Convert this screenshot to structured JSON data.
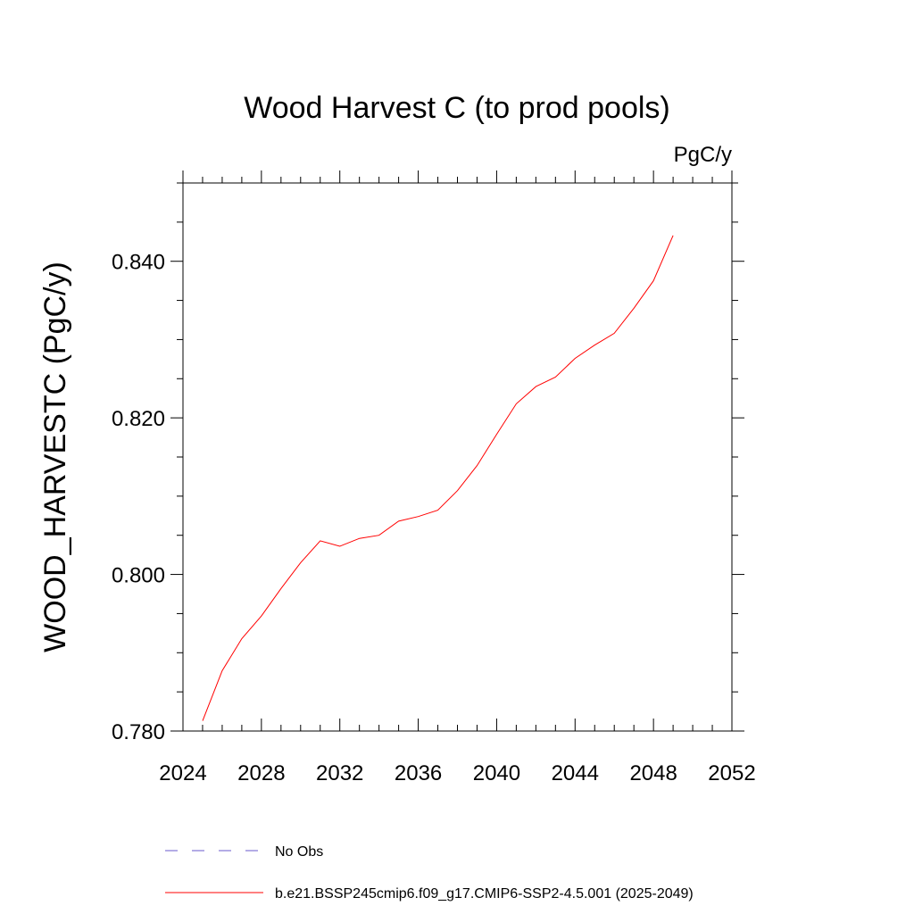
{
  "chart_data": {
    "type": "line",
    "title": "Wood Harvest C (to prod pools)",
    "units": "PgC/y",
    "ylabel": "WOOD_HARVESTC  (PgC/y)",
    "xlabel": "",
    "xlim": [
      2024,
      2052
    ],
    "ylim": [
      0.78,
      0.85
    ],
    "x_ticks": [
      2024,
      2028,
      2032,
      2036,
      2040,
      2044,
      2048,
      2052
    ],
    "x_tick_labels": [
      "2024",
      "2028",
      "2032",
      "2036",
      "2040",
      "2044",
      "2048",
      "2052"
    ],
    "y_ticks": [
      0.78,
      0.8,
      0.82,
      0.84
    ],
    "y_tick_labels": [
      "0.780",
      "0.800",
      "0.820",
      "0.840"
    ],
    "grid": false,
    "series": [
      {
        "name": "b.e21.BSSP245cmip6.f09_g17.CMIP6-SSP2-4.5.001 (2025-2049)",
        "color": "#ff0000",
        "x": [
          2025,
          2026,
          2027,
          2028,
          2029,
          2030,
          2031,
          2032,
          2033,
          2034,
          2035,
          2036,
          2037,
          2038,
          2039,
          2040,
          2041,
          2042,
          2043,
          2044,
          2045,
          2046,
          2047,
          2048,
          2049
        ],
        "values": [
          0.7813,
          0.7877,
          0.7918,
          0.7947,
          0.7982,
          0.8015,
          0.8043,
          0.8036,
          0.8046,
          0.805,
          0.8068,
          0.8074,
          0.8082,
          0.8107,
          0.8139,
          0.8179,
          0.8218,
          0.824,
          0.8252,
          0.8276,
          0.8293,
          0.8308,
          0.834,
          0.8375,
          0.8433
        ]
      }
    ],
    "legend": {
      "placement": "bottom",
      "entries": [
        {
          "label": "No Obs",
          "color": "#6a5acd",
          "style": "dashed"
        },
        {
          "label": "b.e21.BSSP245cmip6.f09_g17.CMIP6-SSP2-4.5.001 (2025-2049)",
          "color": "#ff0000",
          "style": "solid"
        }
      ]
    }
  }
}
